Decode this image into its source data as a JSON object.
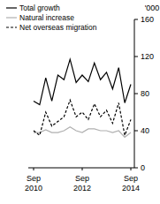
{
  "chart_data": {
    "type": "line",
    "ylabel": "'000",
    "categories": [
      "Sep 2010",
      null,
      null,
      null,
      null,
      null,
      null,
      null,
      "Sep 2012",
      null,
      null,
      null,
      null,
      null,
      null,
      null,
      "Sep 2014"
    ],
    "series": [
      {
        "name": "Total growth",
        "color": "#000000",
        "line_style": "solid",
        "values": [
          72,
          68,
          97,
          72,
          100,
          95,
          117,
          92,
          100,
          93,
          113,
          95,
          103,
          85,
          108,
          70,
          90
        ]
      },
      {
        "name": "Natural increase",
        "color": "#b0b0b0",
        "line_style": "solid",
        "values": [
          38,
          38,
          41,
          38,
          38,
          40,
          44,
          40,
          38,
          42,
          42,
          40,
          40,
          38,
          40,
          33,
          38
        ]
      },
      {
        "name": "Net overseas migration",
        "color": "#000000",
        "line_style": "dashed",
        "values": [
          40,
          35,
          60,
          45,
          50,
          55,
          73,
          55,
          60,
          52,
          69,
          55,
          62,
          48,
          70,
          35,
          52
        ]
      }
    ],
    "ylim": [
      0,
      160
    ],
    "yticks": [
      0,
      40,
      80,
      120,
      160
    ],
    "legend": "top-left"
  }
}
